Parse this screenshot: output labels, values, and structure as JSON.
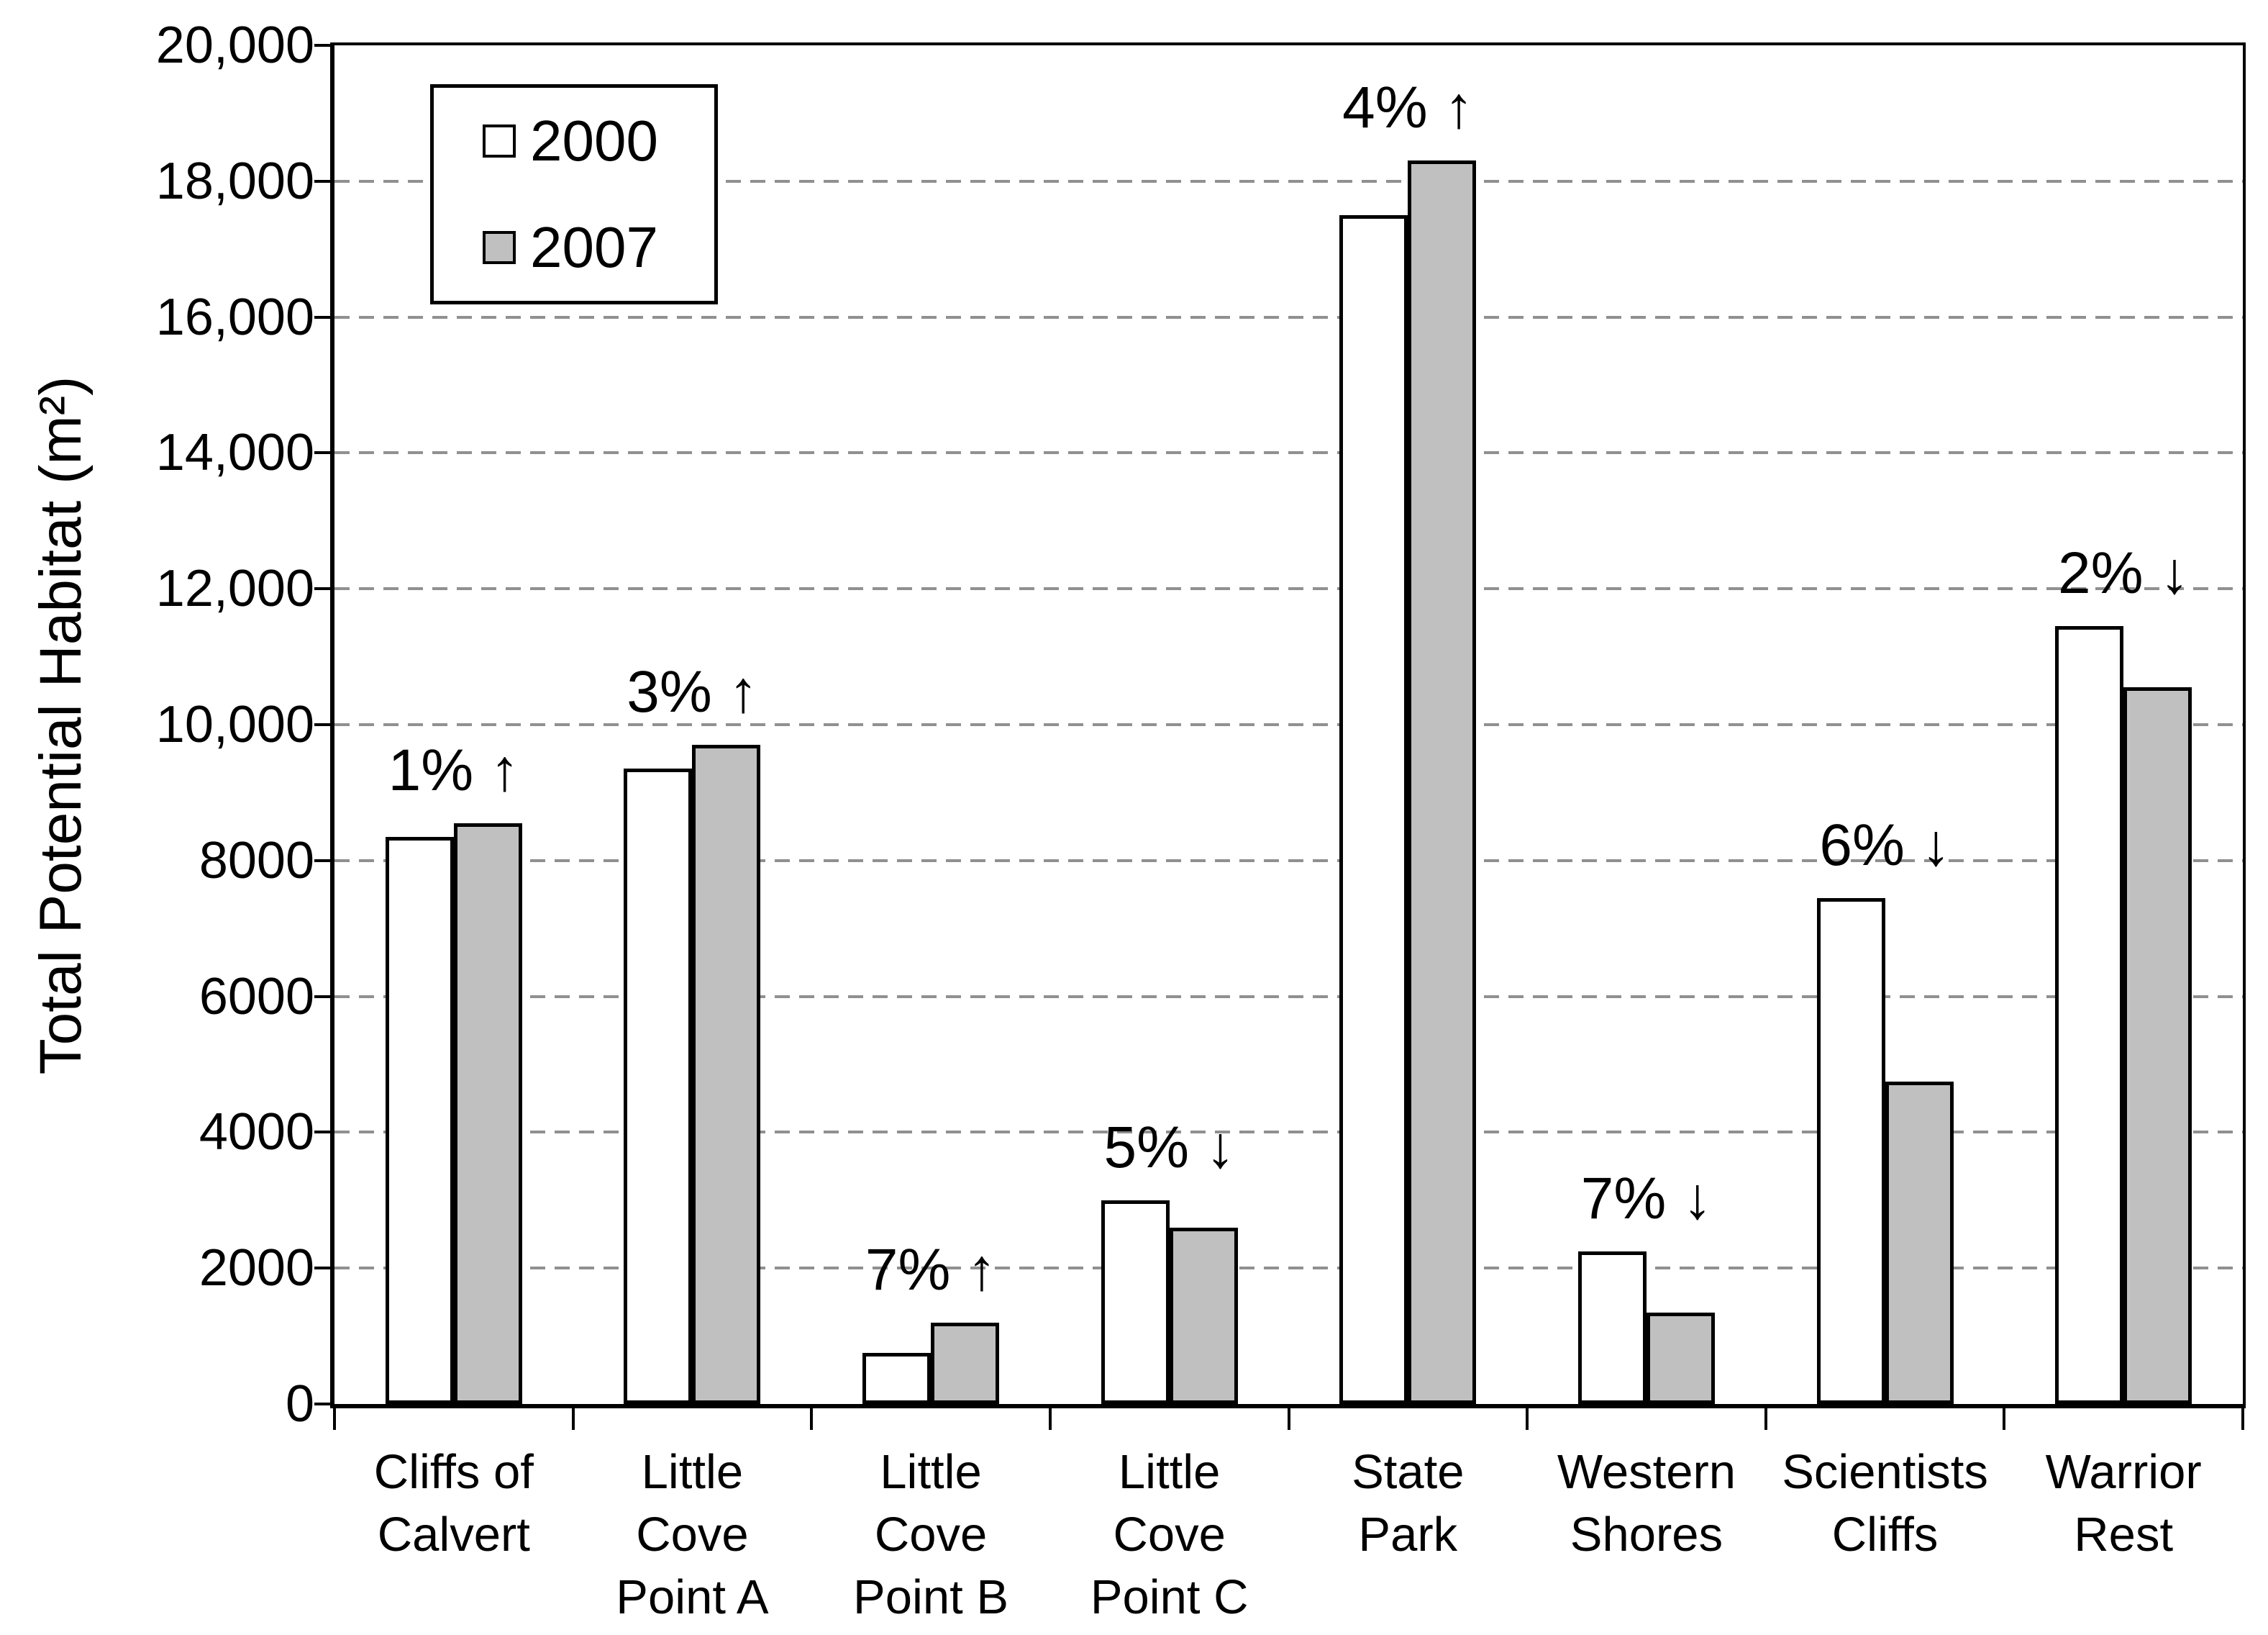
{
  "colors": {
    "background": "#FFFFFF",
    "axis": "#000000",
    "gridline": "#909090",
    "bar_border": "#000000",
    "text": "#000000",
    "series_2000_fill": "#FFFFFF",
    "series_2007_fill": "#C0C0C0"
  },
  "chart_data": {
    "type": "bar",
    "title": "",
    "xlabel": "",
    "ylabel": "Total Potential Habitat (m²)",
    "ylim": [
      0,
      20000
    ],
    "ytick_interval": 2000,
    "ytick_labels": [
      "0",
      "2000",
      "4000",
      "6000",
      "8000",
      "10,000",
      "12,000",
      "14,000",
      "16,000",
      "18,000",
      "20,000"
    ],
    "grid": "horizontal-dashed",
    "legend_position": "top-left",
    "categories": [
      {
        "label_lines": [
          "Cliffs of",
          "Calvert"
        ],
        "annotation": "1% ↑"
      },
      {
        "label_lines": [
          "Little",
          "Cove",
          "Point A"
        ],
        "annotation": "3% ↑"
      },
      {
        "label_lines": [
          "Little",
          "Cove",
          "Point B"
        ],
        "annotation": "7% ↑"
      },
      {
        "label_lines": [
          "Little",
          "Cove",
          "Point C"
        ],
        "annotation": "5% ↓"
      },
      {
        "label_lines": [
          "State",
          "Park"
        ],
        "annotation": "4% ↑"
      },
      {
        "label_lines": [
          "Western",
          "Shores"
        ],
        "annotation": "7% ↓"
      },
      {
        "label_lines": [
          "Scientists",
          "Cliffs"
        ],
        "annotation": "6% ↓"
      },
      {
        "label_lines": [
          "Warrior",
          "Rest"
        ],
        "annotation": "2% ↓"
      }
    ],
    "series": [
      {
        "name": "2000",
        "fill": "#FFFFFF",
        "values": [
          8350,
          9350,
          750,
          3000,
          17500,
          2250,
          7450,
          11450
        ]
      },
      {
        "name": "2007",
        "fill": "#C0C0C0",
        "values": [
          8550,
          9700,
          1200,
          2600,
          18300,
          1350,
          4750,
          10550
        ]
      }
    ]
  }
}
